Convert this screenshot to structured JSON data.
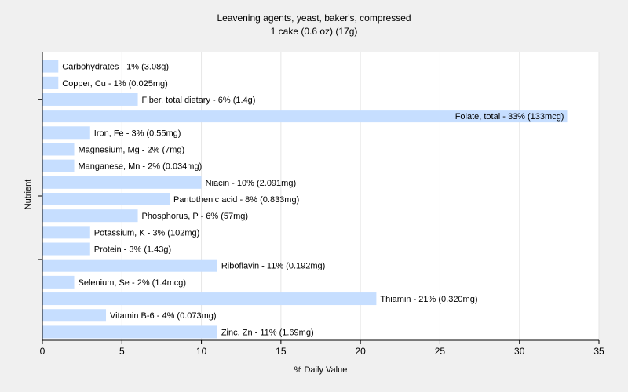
{
  "chart_data": {
    "type": "bar",
    "orientation": "horizontal",
    "title": "Leavening agents, yeast, baker's, compressed",
    "subtitle": "1 cake (0.6 oz) (17g)",
    "xlabel": "% Daily Value",
    "ylabel": "Nutrient",
    "xlim": [
      0,
      35
    ],
    "xticks": [
      0,
      5,
      10,
      15,
      20,
      25,
      30,
      35
    ],
    "grid": true,
    "bar_color": "#c6deff",
    "categories": [
      "Carbohydrates - 1% (3.08g)",
      "Copper, Cu - 1% (0.025mg)",
      "Fiber, total dietary - 6% (1.4g)",
      "Folate, total - 33% (133mcg)",
      "Iron, Fe - 3% (0.55mg)",
      "Magnesium, Mg - 2% (7mg)",
      "Manganese, Mn - 2% (0.034mg)",
      "Niacin - 10% (2.091mg)",
      "Pantothenic acid - 8% (0.833mg)",
      "Phosphorus, P - 6% (57mg)",
      "Potassium, K - 3% (102mg)",
      "Protein - 3% (1.43g)",
      "Riboflavin - 11% (0.192mg)",
      "Selenium, Se - 2% (1.4mcg)",
      "Thiamin - 21% (0.320mg)",
      "Vitamin B-6 - 4% (0.073mg)",
      "Zinc, Zn - 11% (1.69mg)"
    ],
    "values": [
      1,
      1,
      6,
      33,
      3,
      2,
      2,
      10,
      8,
      6,
      3,
      3,
      11,
      2,
      21,
      4,
      11
    ]
  }
}
